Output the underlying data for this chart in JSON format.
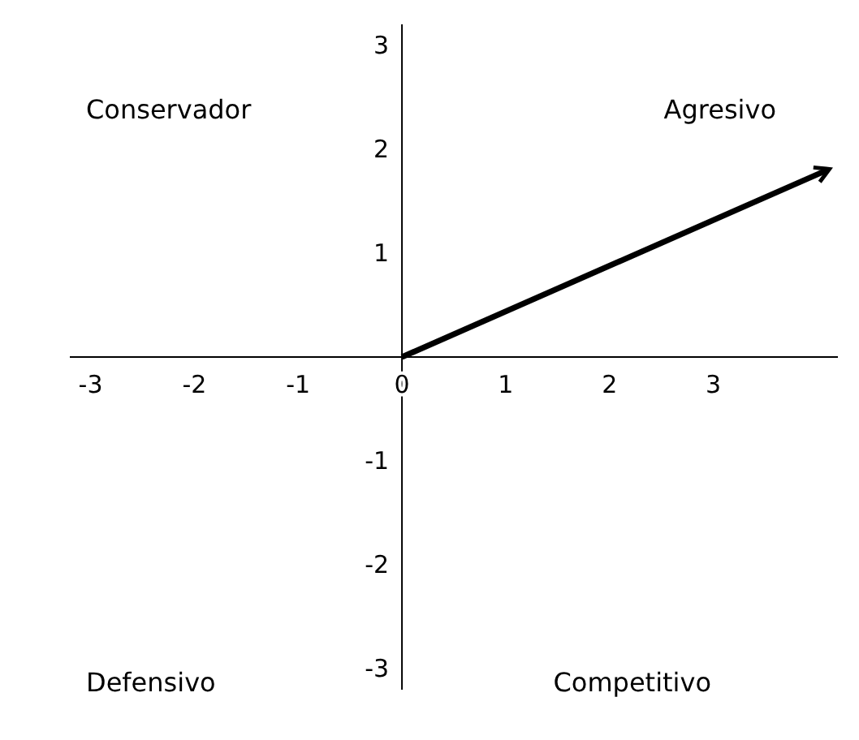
{
  "chart_data": {
    "type": "line",
    "xlim": [
      -3.2,
      4.2
    ],
    "ylim": [
      -3.2,
      3.2
    ],
    "xticks": [
      -3,
      -2,
      -1,
      0,
      1,
      2,
      3
    ],
    "yticks": [
      -3,
      -2,
      -1,
      1,
      2,
      3
    ],
    "grid": false,
    "marker": "none",
    "line_style": "solid",
    "series": [
      {
        "color": "#000000",
        "x": [
          0,
          4.1
        ],
        "values": [
          0,
          1.8
        ]
      }
    ],
    "annotations": [
      "Conservador",
      "Agresivo",
      "Defensivo",
      "Competitivo"
    ]
  }
}
